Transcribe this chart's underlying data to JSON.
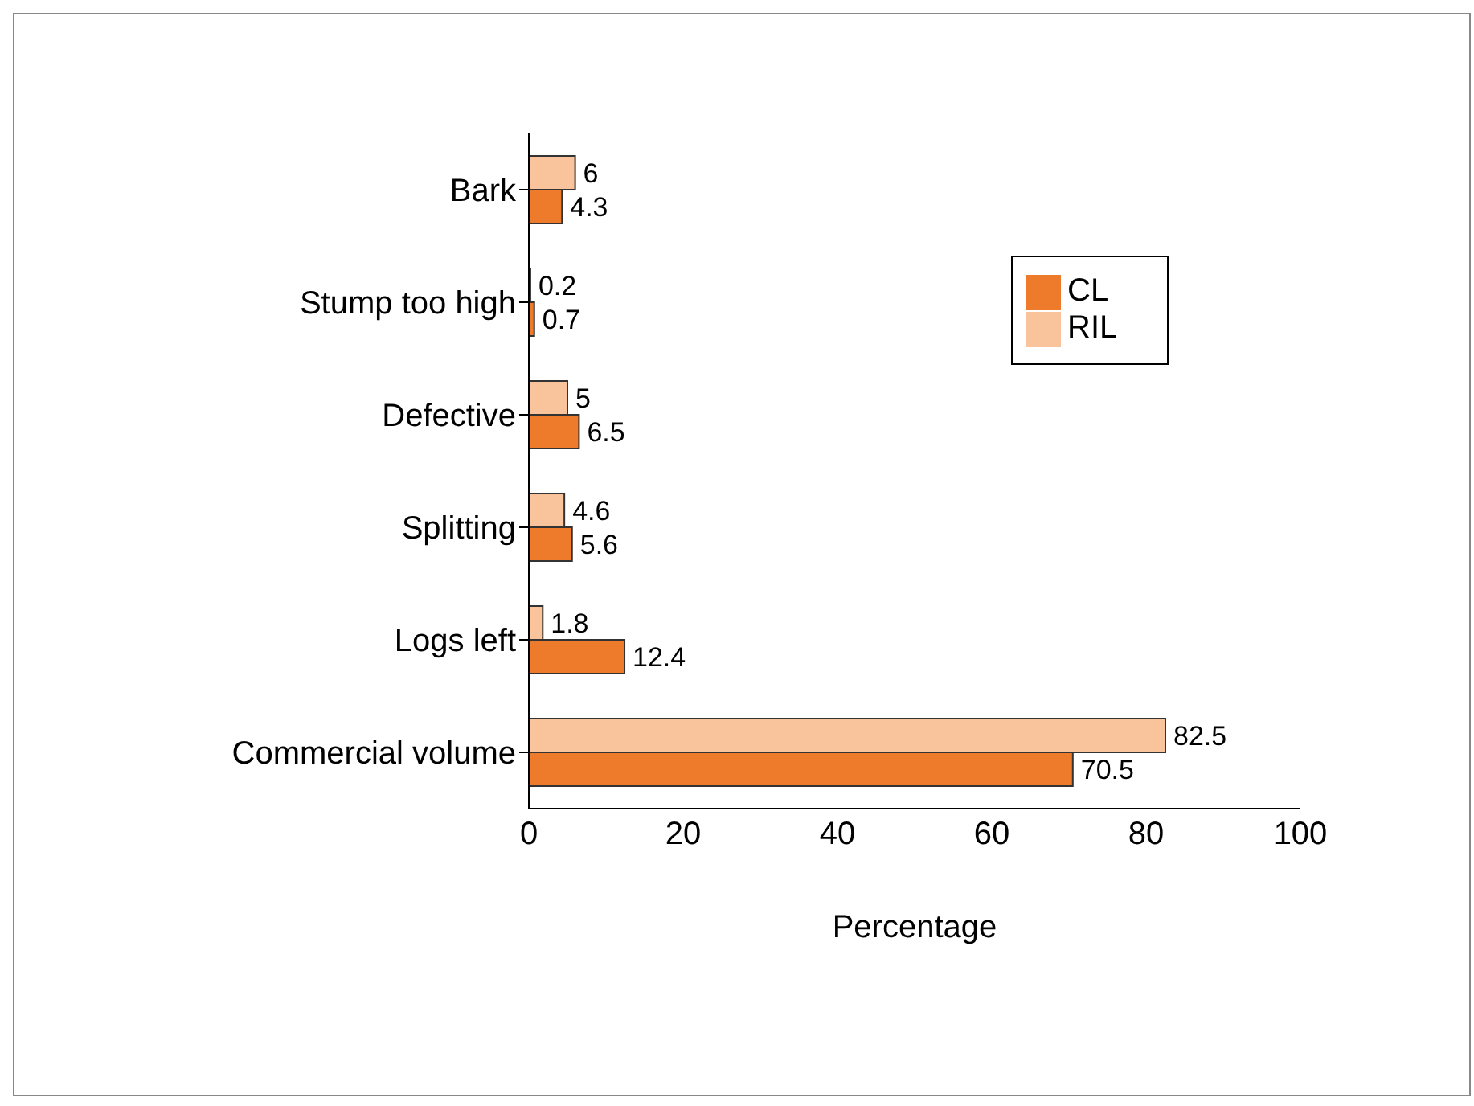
{
  "chart_data": {
    "type": "bar",
    "orientation": "horizontal",
    "xlabel": "Percentage",
    "categories": [
      "Bark",
      "Stump too high",
      "Defective",
      "Splitting",
      "Logs left",
      "Commercial volume"
    ],
    "series": [
      {
        "name": "RIL",
        "color": "#f9c39b",
        "values": [
          6,
          0.2,
          5,
          4.6,
          1.8,
          82.5
        ]
      },
      {
        "name": "CL",
        "color": "#ee7b2b",
        "values": [
          4.3,
          0.7,
          6.5,
          5.6,
          12.4,
          70.5
        ]
      }
    ],
    "xlim": [
      0,
      100
    ],
    "xticks": [
      0,
      20,
      40,
      60,
      80,
      100
    ],
    "grid": false,
    "legend": "top right",
    "data_labels": true
  }
}
